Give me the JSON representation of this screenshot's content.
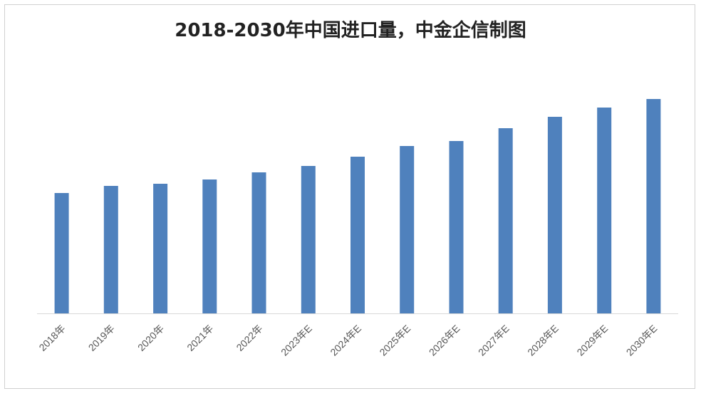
{
  "chart_data": {
    "type": "bar",
    "title": "2018-2030年中国进口量，中金企信制图",
    "xlabel": "",
    "ylabel": "",
    "categories": [
      "2018年",
      "2019年",
      "2020年",
      "2021年",
      "2022年",
      "2023年E",
      "2024年E",
      "2025年E",
      "2026年E",
      "2027年E",
      "2028年E",
      "2029年E",
      "2030年E"
    ],
    "values": [
      169,
      179,
      182,
      188,
      198,
      207,
      220,
      235,
      242,
      260,
      276,
      289,
      301
    ],
    "ylim": [
      0,
      340
    ],
    "grid": false,
    "legend": "none",
    "bar_color": "#4F81BD",
    "axis_color": "#d9d9d9"
  }
}
